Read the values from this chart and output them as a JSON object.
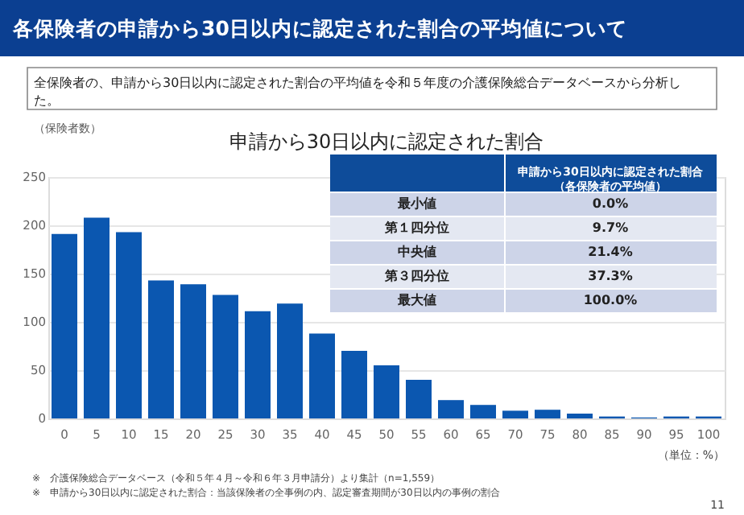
{
  "chart_data": {
    "type": "bar",
    "title": "各保険者の申請から30日以内に認定された割合の平均値について",
    "subtitle": "申請から30日以内に認定された割合",
    "ylabel": "（保険者数）",
    "categories": [
      "0",
      "5",
      "10",
      "15",
      "20",
      "25",
      "30",
      "35",
      "40",
      "45",
      "50",
      "55",
      "60",
      "65",
      "70",
      "75",
      "80",
      "85",
      "90",
      "95",
      "100"
    ],
    "values": [
      191,
      208,
      193,
      143,
      139,
      128,
      111,
      119,
      88,
      70,
      55,
      40,
      19,
      14,
      8,
      9,
      5,
      2,
      1,
      2,
      2
    ],
    "color": "#0b57b0",
    "ylim": [
      0,
      250
    ],
    "yticks": [
      0,
      50,
      100,
      150,
      200,
      250
    ],
    "grid": "y",
    "annotations": [
      "全保険者の、申請から30日以内に認定された割合の平均値を令和５年度の介護保険総合データベースから分析した。",
      "申請から30日以内に認定された割合（各保険者の平均値）",
      "最小値",
      "0.0%",
      "第１四分位",
      "9.7%",
      "中央値",
      "21.4%",
      "第３四分位",
      "37.3%",
      "最大値",
      "100.0%",
      "（単位：%）",
      "※　介護保険総合データベース（令和５年４月～令和６年３月申請分）より集計（n=1,559）",
      "※　申請から30日以内に認定された割合：当該保険者の全事例の内、認定審査期間が30日以内の事例の割合",
      "11"
    ]
  }
}
